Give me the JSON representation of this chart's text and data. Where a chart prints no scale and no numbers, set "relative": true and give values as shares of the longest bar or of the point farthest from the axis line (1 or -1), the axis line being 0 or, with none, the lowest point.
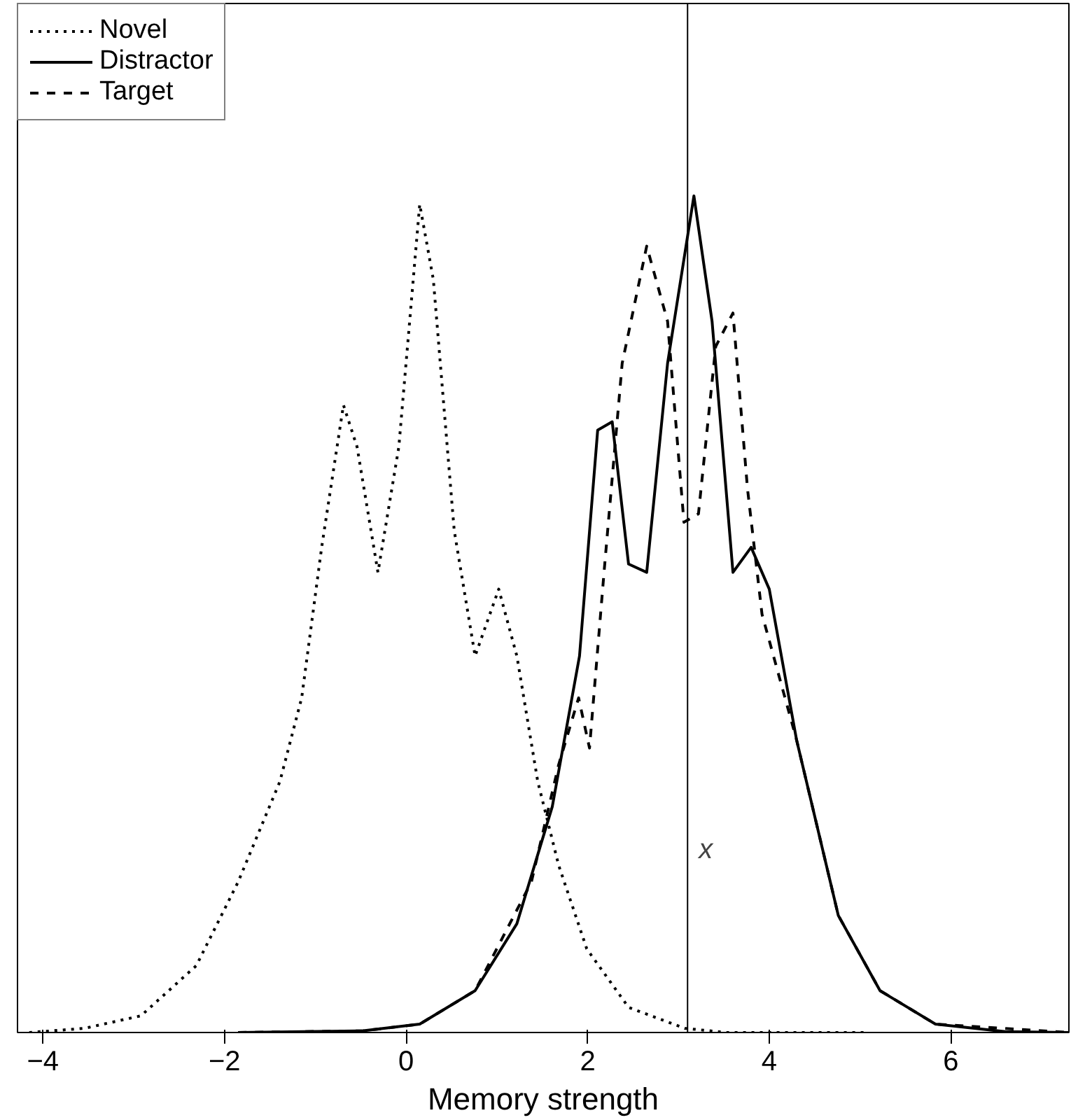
{
  "chart_data": {
    "type": "line",
    "relative": true,
    "xlabel": "Memory strength",
    "xlim": [
      -4.28,
      7.3
    ],
    "xticks": [
      -4,
      -2,
      0,
      2,
      4,
      6
    ],
    "tick_labels": "x",
    "grid": false,
    "legend": "top left",
    "series": [
      {
        "name": "Novel",
        "color": "#000000",
        "line_style": "dotted",
        "x": [
          -4.15,
          -3.54,
          -2.92,
          -2.31,
          -1.85,
          -1.39,
          -1.15,
          -0.93,
          -0.69,
          -0.54,
          -0.31,
          -0.08,
          0.15,
          0.3,
          0.53,
          0.76,
          1.02,
          1.22,
          1.45,
          1.68,
          1.99,
          2.45,
          3.07,
          3.53,
          5.06
        ],
        "values": [
          0,
          0.005,
          0.02,
          0.08,
          0.18,
          0.3,
          0.4,
          0.58,
          0.75,
          0.7,
          0.55,
          0.7,
          0.99,
          0.9,
          0.6,
          0.45,
          0.53,
          0.45,
          0.3,
          0.2,
          0.1,
          0.03,
          0.005,
          0,
          0
        ]
      },
      {
        "name": "Distractor",
        "color": "#000000",
        "line_style": "solid",
        "x": [
          -1.85,
          -0.47,
          0.15,
          0.76,
          1.22,
          1.61,
          1.91,
          2.11,
          2.27,
          2.45,
          2.65,
          2.88,
          3.17,
          3.37,
          3.6,
          3.8,
          4.0,
          4.3,
          4.76,
          5.22,
          5.83,
          6.6,
          7.3
        ],
        "values": [
          0,
          0.002,
          0.01,
          0.05,
          0.13,
          0.27,
          0.45,
          0.72,
          0.73,
          0.56,
          0.55,
          0.8,
          1.0,
          0.85,
          0.55,
          0.58,
          0.53,
          0.35,
          0.14,
          0.05,
          0.01,
          0.001,
          0
        ]
      },
      {
        "name": "Target",
        "color": "#000000",
        "line_style": "dashed",
        "x": [
          -1.85,
          -0.47,
          0.15,
          0.76,
          1.38,
          1.68,
          1.9,
          2.02,
          2.18,
          2.38,
          2.65,
          2.88,
          3.06,
          3.22,
          3.41,
          3.6,
          3.76,
          3.92,
          4.3,
          4.76,
          5.22,
          5.83,
          7.3
        ],
        "values": [
          0,
          0.002,
          0.01,
          0.05,
          0.18,
          0.32,
          0.4,
          0.34,
          0.55,
          0.8,
          0.94,
          0.85,
          0.61,
          0.62,
          0.82,
          0.86,
          0.65,
          0.5,
          0.35,
          0.14,
          0.05,
          0.01,
          0
        ]
      }
    ],
    "ref_lines": [
      {
        "axis": "x",
        "value": 3.1,
        "label": "x",
        "color": "#000000",
        "line_style": "solid"
      }
    ]
  }
}
